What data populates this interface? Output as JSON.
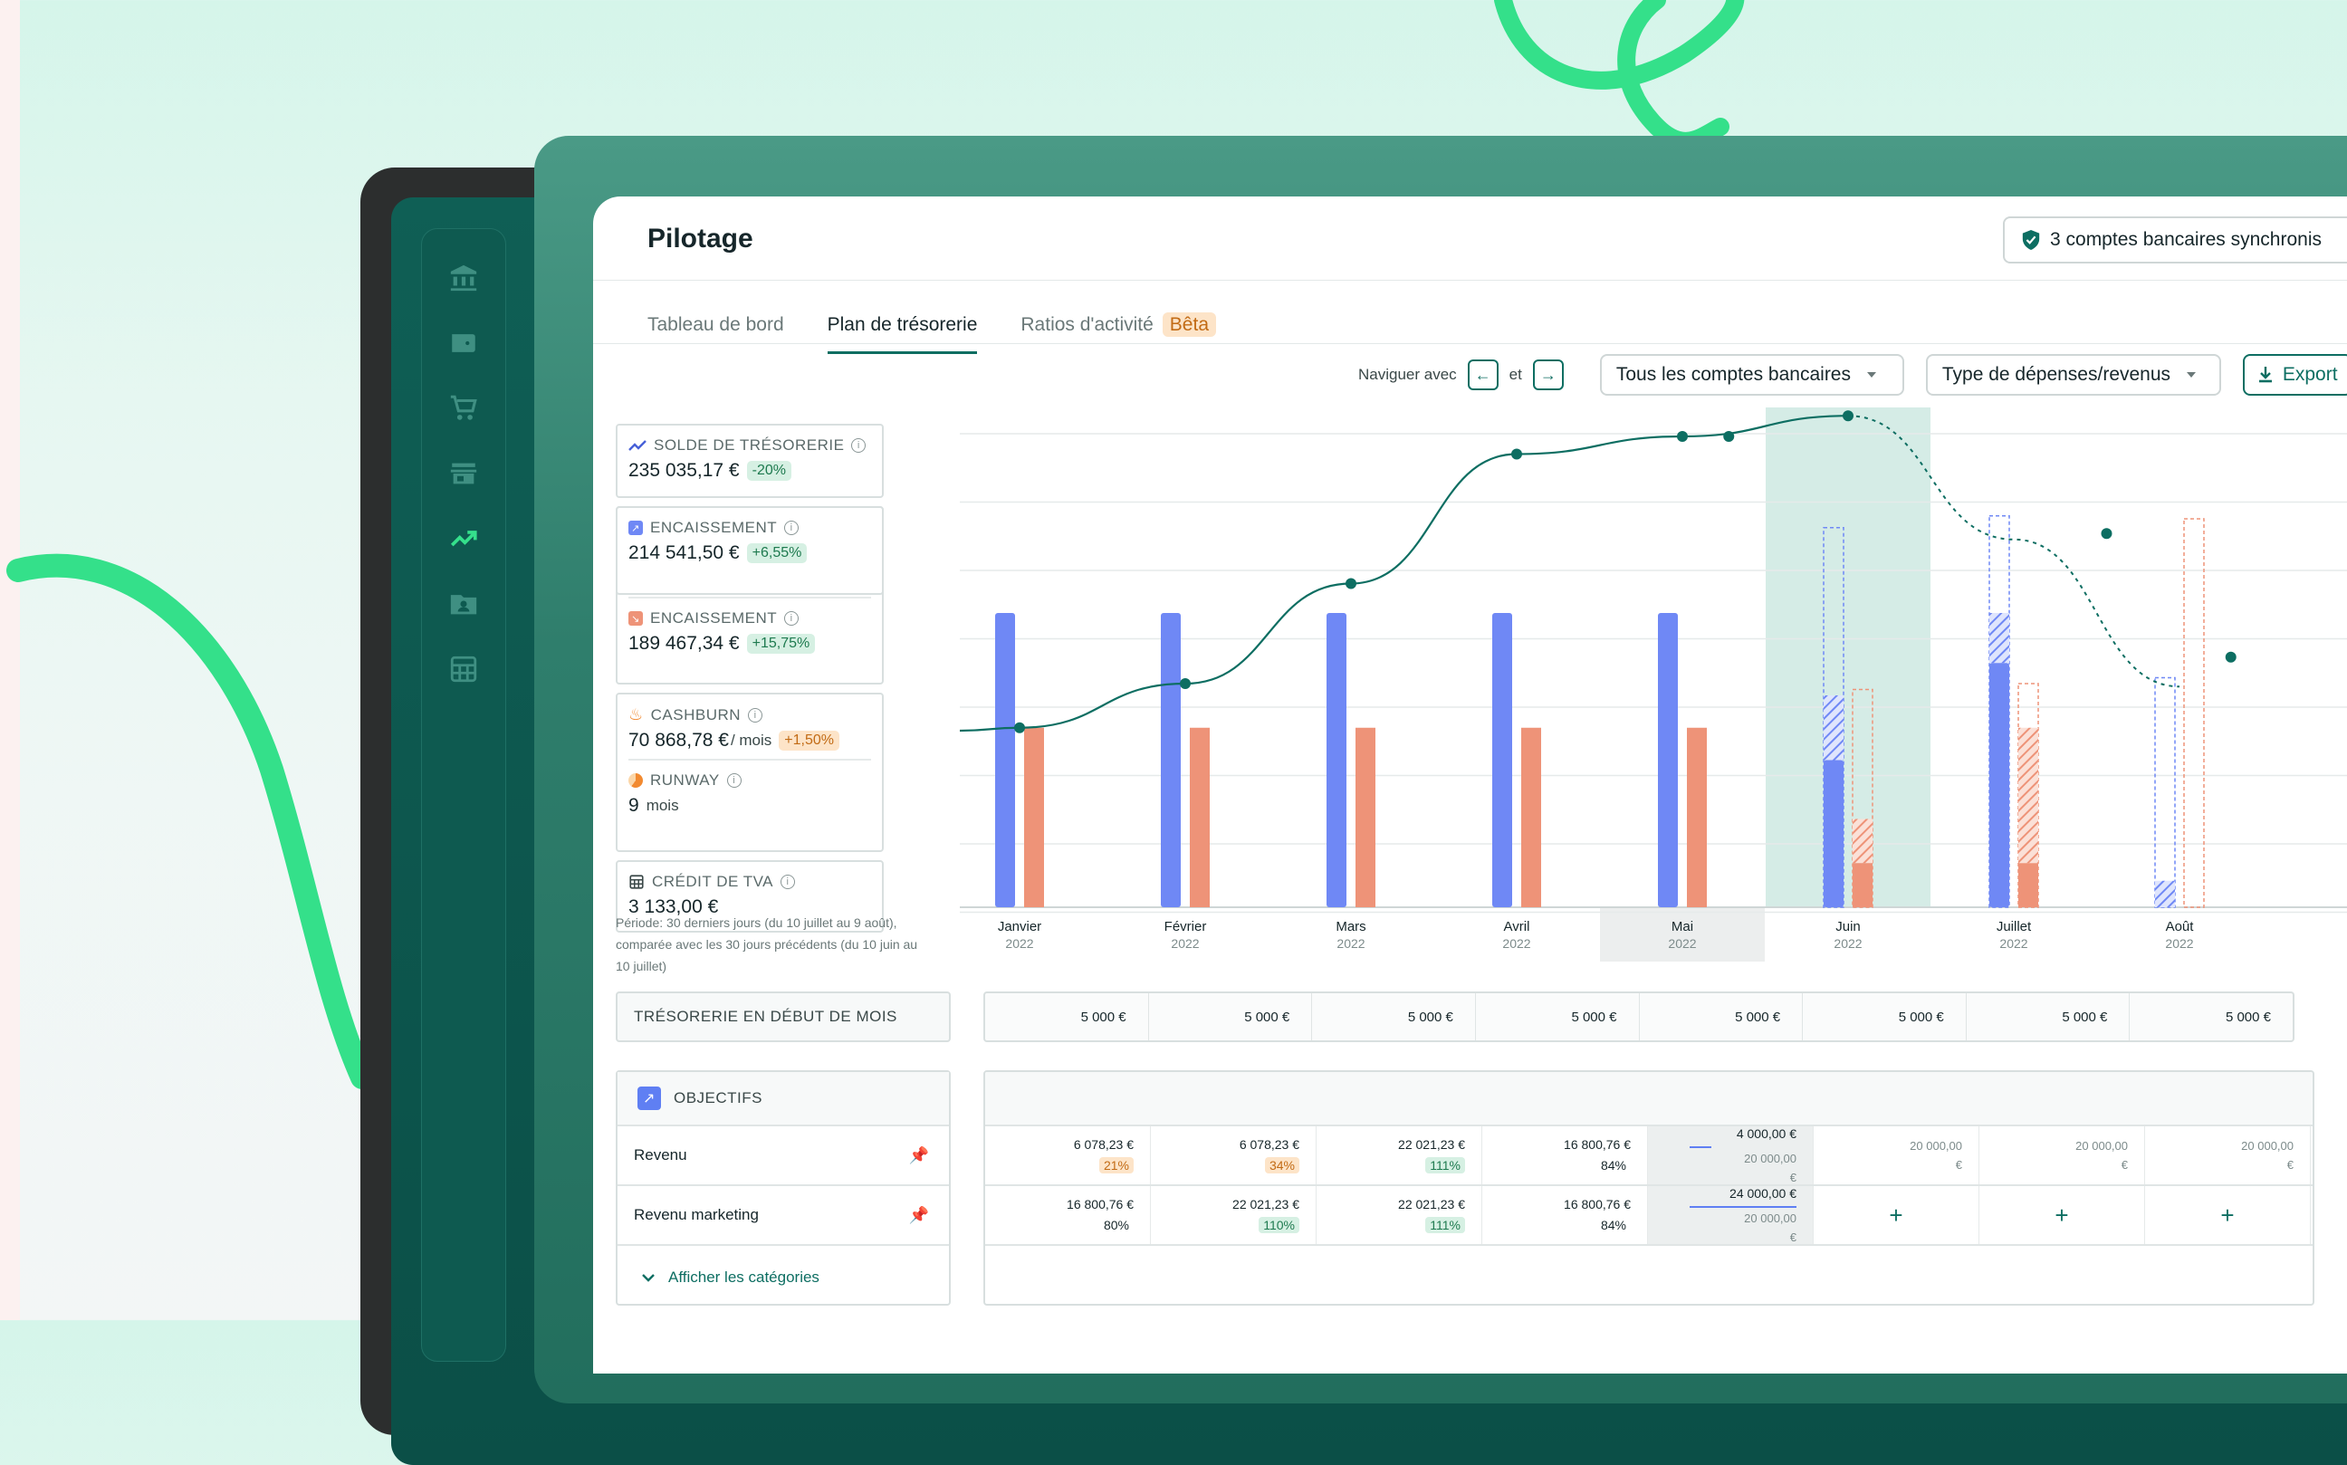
{
  "app": {
    "title": "Pilotage",
    "sync_label": "3 comptes bancaires synchronis"
  },
  "tabs": [
    {
      "label": "Tableau de bord",
      "active": false
    },
    {
      "label": "Plan de trésorerie",
      "active": true
    },
    {
      "label": "Ratios d'activité",
      "active": false,
      "badge": "Bêta"
    }
  ],
  "toolbar": {
    "navigate_label": "Naviguer avec",
    "and_label": "et",
    "prev_key": "←",
    "next_key": "→",
    "accounts_select": "Tous les comptes bancaires",
    "type_select": "Type de dépenses/revenus",
    "export_label": "Export"
  },
  "kpis": {
    "solde": {
      "label": "SOLDE DE TRÉSORERIE",
      "value": "235 035,17 €",
      "change": "-20%"
    },
    "encaissement_in": {
      "label": "ENCAISSEMENT",
      "value": "214 541,50 €",
      "change": "+6,55%"
    },
    "encaissement_out": {
      "label": "ENCAISSEMENT",
      "value": "189 467,34 €",
      "change": "+15,75%"
    },
    "cashburn": {
      "label": "CASHBURN",
      "value": "70 868,78 €",
      "unit": "/ mois",
      "change": "+1,50%"
    },
    "runway": {
      "label": "RUNWAY",
      "value": "9",
      "unit": "mois"
    },
    "tva": {
      "label": "CRÉDIT DE TVA",
      "value": "3 133,00 €"
    }
  },
  "period_note": "Période: 30 derniers jours (du 10 juillet au 9 août), comparée avec les 30 jours précédents (du 10 juin au 10 juillet)",
  "colors": {
    "accent": "#0d6e62",
    "income": "#6f88f5",
    "expense": "#ee9378",
    "highlight": "#d5ece6"
  },
  "chart_data": {
    "type": "bar",
    "categories": [
      "Janvier",
      "Février",
      "Mars",
      "Avril",
      "Mai",
      "Juin",
      "Juillet",
      "Août"
    ],
    "years": [
      "2022",
      "2022",
      "2022",
      "2022",
      "2022",
      "2022",
      "2022",
      "2022"
    ],
    "series": [
      {
        "values": [
          100,
          100,
          100,
          100,
          100,
          50,
          83,
          9
        ]
      },
      {
        "values": [
          61,
          61,
          61,
          61,
          61,
          15,
          15,
          0
        ]
      },
      {
        "values": [
          null,
          null,
          null,
          null,
          null,
          79,
          50,
          69
        ]
      },
      {
        "values": [
          null,
          null,
          null,
          null,
          null,
          59,
          61,
          132
        ]
      }
    ],
    "balance_line": [
      [
        0,
        61
      ],
      [
        1,
        76
      ],
      [
        2,
        110
      ],
      [
        3,
        154
      ],
      [
        4,
        160
      ],
      [
        5,
        167
      ],
      [
        6,
        125
      ],
      [
        7,
        75
      ]
    ],
    "forecast_points": [
      [
        4.28,
        160
      ],
      [
        6.56,
        127
      ],
      [
        7.31,
        85
      ]
    ],
    "highlight_month": "Juin",
    "selected_month": "Mai",
    "ylim": [
      0,
      220
    ],
    "grid": true
  },
  "table": {
    "tresorerie_label": "TRÉSORERIE EN DÉBUT DE MOIS",
    "tresorerie_values": [
      "5 000 €",
      "5 000 €",
      "5 000 €",
      "5 000 €",
      "5 000 €",
      "5 000 €",
      "5 000 €",
      "5 000 €"
    ],
    "objectifs_label": "OBJECTIFS",
    "rows": [
      {
        "label": "Revenu",
        "cells": [
          {
            "value": "6 078,23 €",
            "pct": "21%",
            "pct_style": "orange"
          },
          {
            "value": "6 078,23 €",
            "pct": "34%",
            "pct_style": "orange"
          },
          {
            "value": "22 021,23 €",
            "pct": "111%",
            "pct_style": "green"
          },
          {
            "value": "16 800,76 €",
            "pct": "84%",
            "pct_style": "plain"
          },
          {
            "value": "4 000,00 €",
            "goal": "20 000,00",
            "goal_unit": "€",
            "progress": 0.2,
            "highlight": true
          },
          {
            "goal": "20 000,00",
            "goal_unit": "€"
          },
          {
            "goal": "20 000,00",
            "goal_unit": "€"
          },
          {
            "goal": "20 000,00",
            "goal_unit": "€"
          }
        ]
      },
      {
        "label": "Revenu marketing",
        "cells": [
          {
            "value": "16 800,76 €",
            "pct": "80%",
            "pct_style": "plain"
          },
          {
            "value": "22 021,23 €",
            "pct": "110%",
            "pct_style": "green"
          },
          {
            "value": "22 021,23 €",
            "pct": "111%",
            "pct_style": "green"
          },
          {
            "value": "16 800,76 €",
            "pct": "84%",
            "pct_style": "plain"
          },
          {
            "value": "24 000,00 €",
            "goal": "20 000,00",
            "goal_unit": "€",
            "progress": 1.0,
            "highlight": true
          },
          {
            "add": "+"
          },
          {
            "add": "+"
          },
          {
            "add": "+"
          }
        ]
      }
    ],
    "show_categories": "Afficher les catégories"
  }
}
